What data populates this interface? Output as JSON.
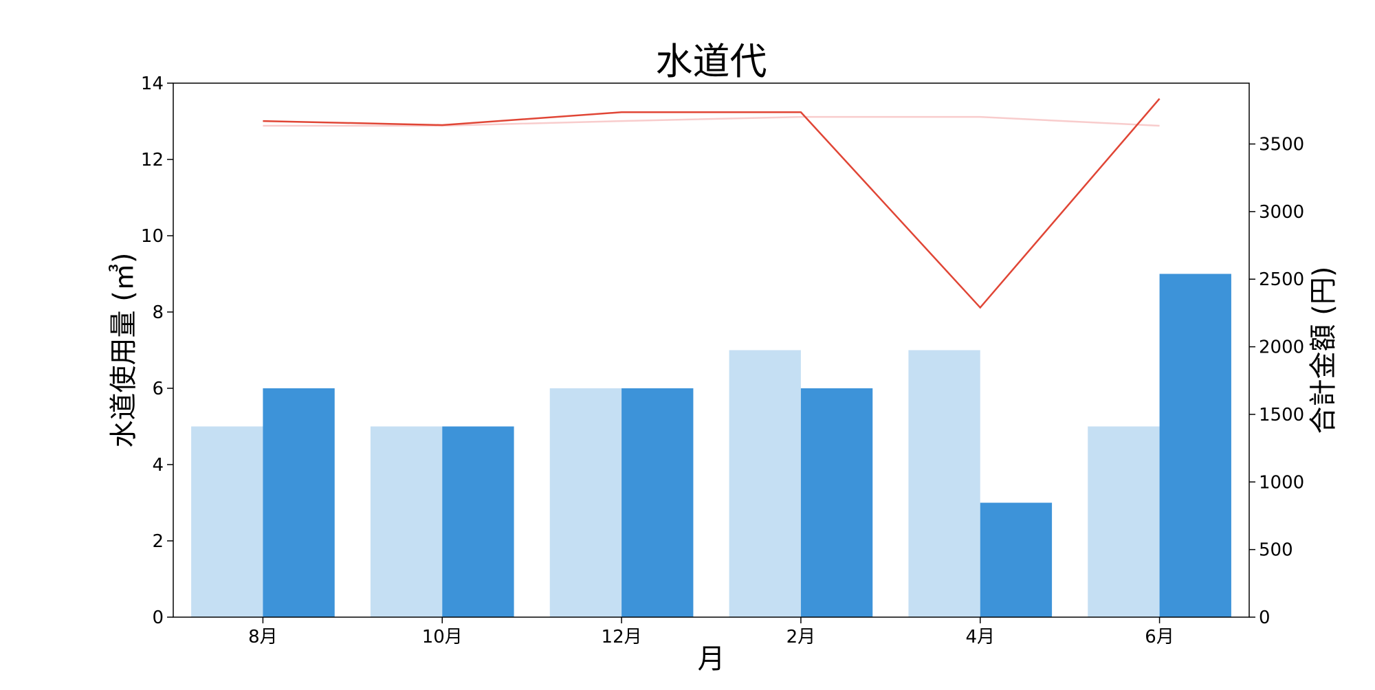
{
  "chart_data": {
    "type": "bar",
    "title": "水道代",
    "xlabel": "月",
    "ylabel": "水道使用量 (㎥)",
    "y2label": "合計金額 (円)",
    "categories": [
      "8月",
      "10月",
      "12月",
      "2月",
      "4月",
      "6月"
    ],
    "ylim": [
      0,
      14
    ],
    "yticks": [
      0,
      2,
      4,
      6,
      8,
      10,
      12,
      14
    ],
    "y2lim": [
      0,
      3950
    ],
    "y2ticks": [
      0,
      500,
      1000,
      1500,
      2000,
      2500,
      3000,
      3500
    ],
    "grid": false,
    "series": [
      {
        "kind": "bar",
        "axis": "left",
        "color": "#c5dff3",
        "values": [
          5,
          5,
          6,
          7,
          7,
          5
        ]
      },
      {
        "kind": "bar",
        "axis": "left",
        "color": "#3d93d9",
        "values": [
          6,
          5,
          6,
          6,
          3,
          9
        ]
      },
      {
        "kind": "line",
        "axis": "right",
        "color": "#f8cccc",
        "values": [
          3635,
          3635,
          3670,
          3700,
          3700,
          3635
        ]
      },
      {
        "kind": "line",
        "axis": "right",
        "color": "#e04535",
        "values": [
          3670,
          3640,
          3735,
          3735,
          2290,
          3835
        ]
      }
    ]
  }
}
